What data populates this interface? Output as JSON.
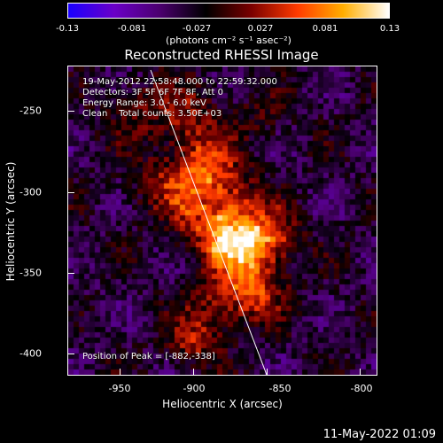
{
  "colorbar": {
    "ticks": [
      "-0.13",
      "-0.081",
      "-0.027",
      "0.027",
      "0.081",
      "0.13"
    ],
    "units": "(photons cm⁻² s⁻¹ asec⁻²)",
    "colors": [
      "#1a00ff",
      "#6a00c8",
      "#4b006e",
      "#000000",
      "#7a0000",
      "#ff3a00",
      "#ffae00",
      "#ffffff"
    ]
  },
  "chart_data": {
    "type": "heatmap",
    "title": "Reconstructed RHESSI Image",
    "xlabel": "Heliocentric X (arcsec)",
    "ylabel": "Heliocentric Y (arcsec)",
    "xlim": [
      -976,
      -808
    ],
    "ylim": [
      -416,
      -229
    ],
    "x_ticks": [
      "-950",
      "-900",
      "-850",
      "-800"
    ],
    "y_ticks": [
      "-250",
      "-300",
      "-350",
      "-400"
    ],
    "value_range": [
      -0.13,
      0.13
    ],
    "peak": [
      -882,
      -338
    ]
  },
  "info": {
    "line1": "19-May-2012 22:58:48.000 to 22:59:32.000",
    "line2": "Detectors: 3F 5F 6F 7F 8F, Att 0",
    "line3": "Energy Range: 3.0 - 6.0 keV",
    "line4": "Clean    Total counts: 3.50E+03",
    "peak_label": "Position of Peak = [-882,-338]"
  },
  "footer": {
    "date": "11-May-2022 01:09"
  }
}
